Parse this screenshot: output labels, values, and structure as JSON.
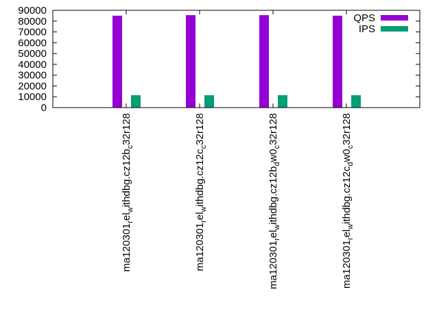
{
  "chart_data": {
    "type": "bar",
    "title": "",
    "xlabel": "",
    "ylabel": "",
    "ylim": [
      0,
      90000
    ],
    "yticks": [
      0,
      10000,
      20000,
      30000,
      40000,
      50000,
      60000,
      70000,
      80000,
      90000
    ],
    "grid": false,
    "legend_position": "top-right",
    "categories": [
      "ma120301relwithdbg.cz12bc32r128",
      "ma120301relwithdbg.cz12cc32r128",
      "ma120301relwithdbg.cz12bdw0c32r128",
      "ma120301relwithdbg.cz12cdw0c32r128"
    ],
    "category_label_parts": [
      [
        [
          "ma120301",
          "n"
        ],
        [
          "r",
          "s"
        ],
        [
          "el",
          "n"
        ],
        [
          "w",
          "s"
        ],
        [
          "ithdbg.cz12b",
          "n"
        ],
        [
          "c",
          "s"
        ],
        [
          "32r128",
          "n"
        ]
      ],
      [
        [
          "ma120301",
          "n"
        ],
        [
          "r",
          "s"
        ],
        [
          "el",
          "n"
        ],
        [
          "w",
          "s"
        ],
        [
          "ithdbg.cz12c",
          "n"
        ],
        [
          "c",
          "s"
        ],
        [
          "32r128",
          "n"
        ]
      ],
      [
        [
          "ma120301",
          "n"
        ],
        [
          "r",
          "s"
        ],
        [
          "el",
          "n"
        ],
        [
          "w",
          "s"
        ],
        [
          "ithdbg.cz12b",
          "n"
        ],
        [
          "d",
          "s"
        ],
        [
          "w0",
          "n"
        ],
        [
          "c",
          "s"
        ],
        [
          "32r128",
          "n"
        ]
      ],
      [
        [
          "ma120301",
          "n"
        ],
        [
          "r",
          "s"
        ],
        [
          "el",
          "n"
        ],
        [
          "w",
          "s"
        ],
        [
          "ithdbg.cz12c",
          "n"
        ],
        [
          "d",
          "s"
        ],
        [
          "w0",
          "n"
        ],
        [
          "c",
          "s"
        ],
        [
          "32r128",
          "n"
        ]
      ]
    ],
    "series": [
      {
        "name": "QPS",
        "color": "#9400d3",
        "values": [
          85000,
          85500,
          85500,
          85000
        ]
      },
      {
        "name": "IPS",
        "color": "#009e73",
        "values": [
          11500,
          11500,
          11500,
          11500
        ]
      }
    ]
  }
}
